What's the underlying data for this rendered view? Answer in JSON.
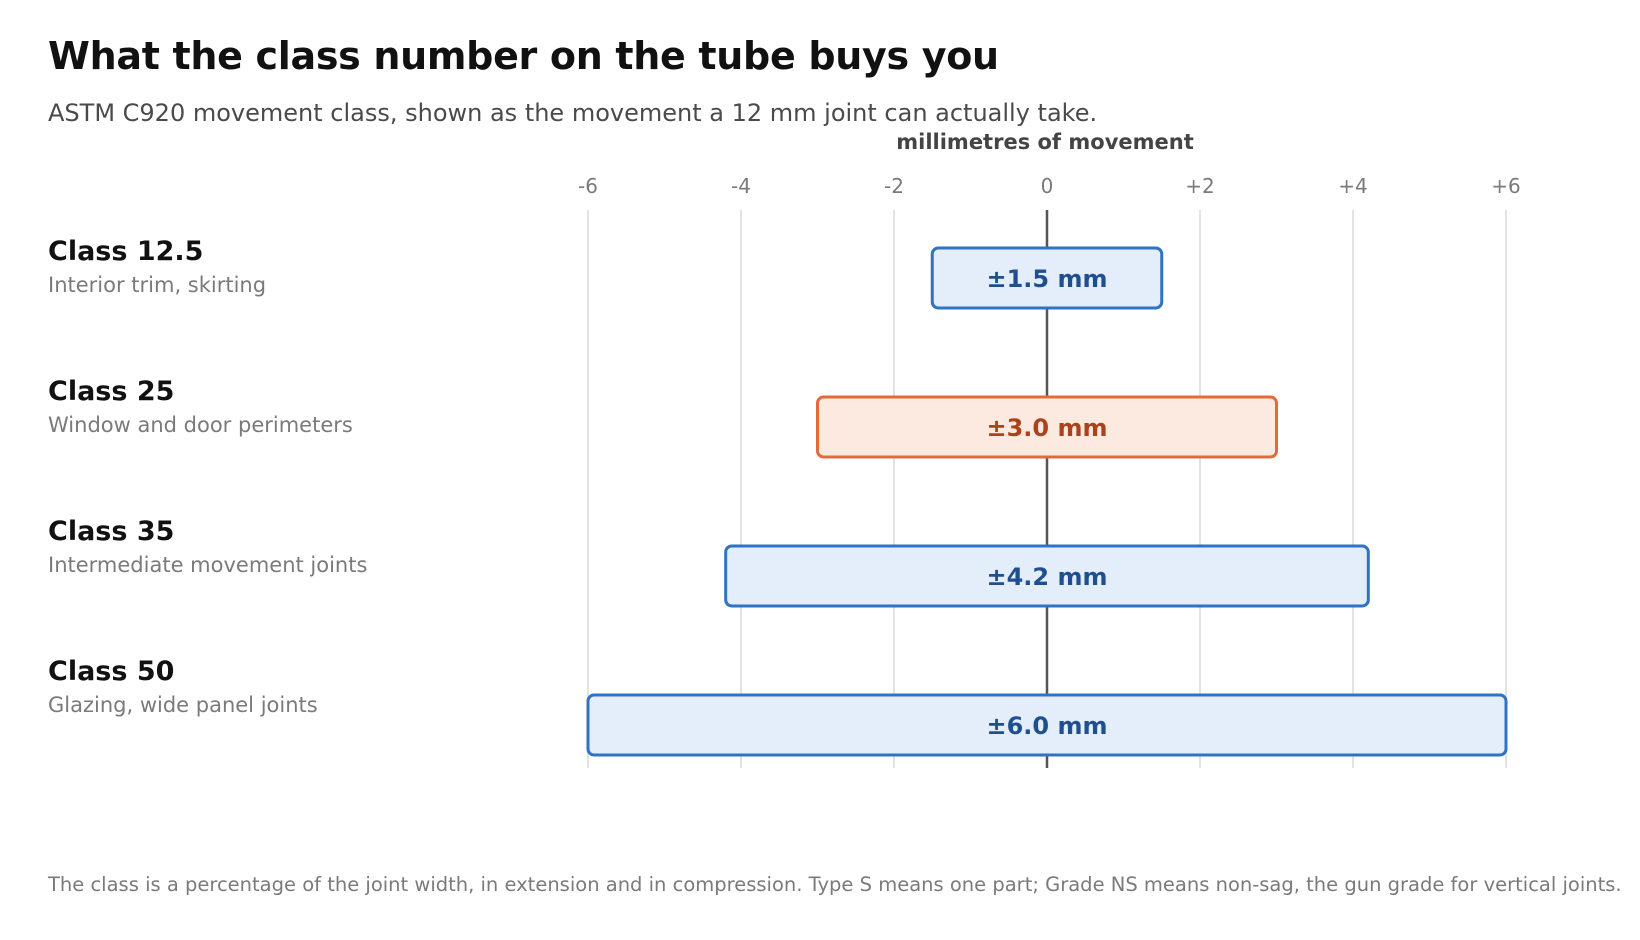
{
  "chart_data": {
    "type": "bar",
    "title": "What the class number on the tube buys you",
    "subtitle": "ASTM C920 movement class, shown as the movement a 12 mm joint can actually take.",
    "xlabel": "millimetres of movement",
    "xlim": [
      -6,
      6
    ],
    "ticks": [
      -6,
      -4,
      -2,
      0,
      2,
      4,
      6
    ],
    "tick_labels": [
      "-6",
      "-4",
      "-2",
      "0",
      "+2",
      "+4",
      "+6"
    ],
    "grid": true,
    "categories": [
      "Class 12.5",
      "Class 25",
      "Class 35",
      "Class 50"
    ],
    "descriptions": [
      "Interior trim, skirting",
      "Window and door perimeters",
      "Intermediate movement joints",
      "Glazing, wide panel joints"
    ],
    "values": [
      1.5,
      3.0,
      4.2,
      6.0
    ],
    "value_labels": [
      "±1.5 mm",
      "±3.0 mm",
      "±4.2 mm",
      "±6.0 mm"
    ],
    "highlight_index": 1,
    "footnote": "The class is a percentage of the joint width, in extension and in compression. Type S means one part; Grade NS means non-sag, the gun grade for vertical joints."
  },
  "colors": {
    "bar_fill": "#e4eefa",
    "bar_stroke": "#2e73c4",
    "bar_text": "#1f4f8f",
    "highlight_fill": "#fce9df",
    "highlight_stroke": "#e26b3a",
    "highlight_text": "#a8431c",
    "grid": "#d9d9d9",
    "zero_axis": "#555555",
    "tick_text": "#7a7a7a"
  }
}
